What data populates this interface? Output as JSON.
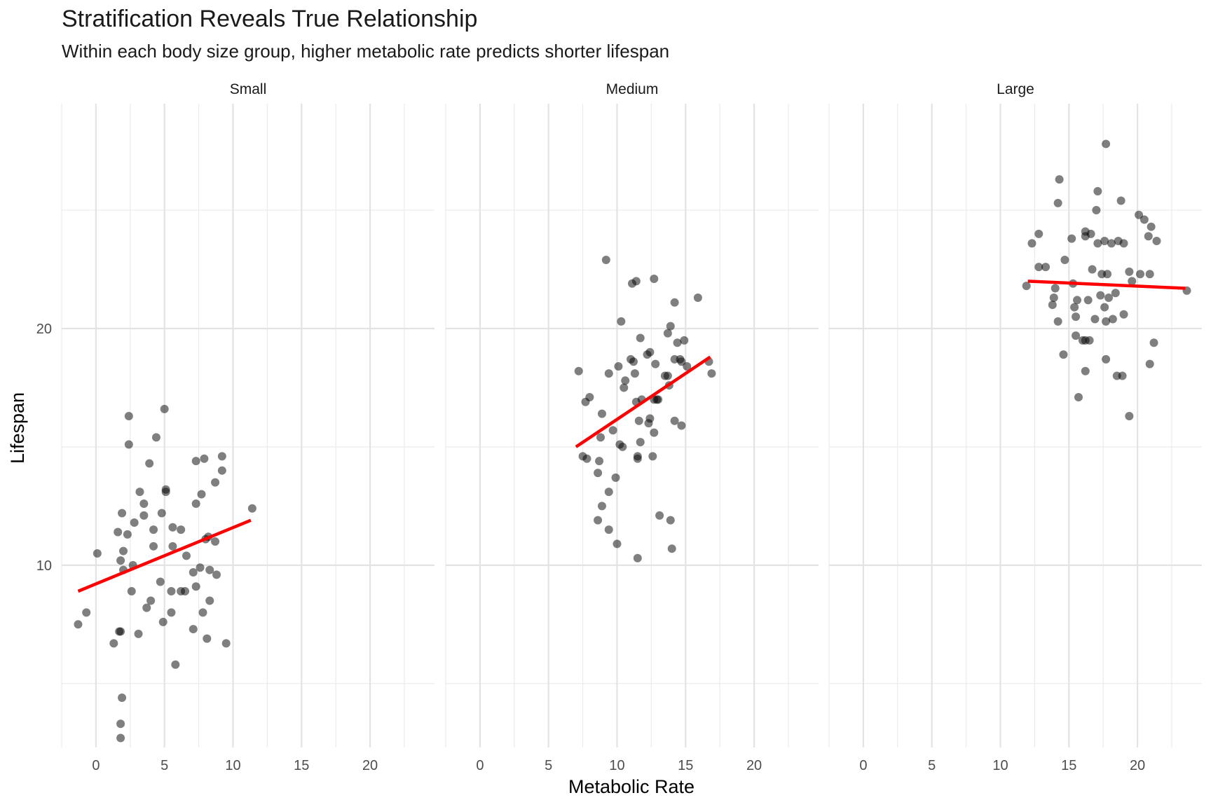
{
  "title": "Stratification Reveals True Relationship",
  "subtitle": "Within each body size group, higher metabolic rate predicts shorter lifespan",
  "chart_data": {
    "type": "scatter",
    "facet_by": "body size group",
    "xlabel": "Metabolic Rate",
    "ylabel": "Lifespan",
    "xlim": [
      -2.5,
      24.7
    ],
    "ylim": [
      2.3,
      29.5
    ],
    "x_ticks": [
      0,
      5,
      10,
      15,
      20
    ],
    "y_ticks": [
      10,
      20
    ],
    "grid": true,
    "point_color": "#000000",
    "point_alpha": 0.5,
    "fit_line_color": "#ff0000",
    "facets": [
      {
        "label": "Small",
        "fit_line": {
          "x": [
            -1.3,
            11.3
          ],
          "y": [
            8.9,
            11.9
          ]
        },
        "points": [
          [
            -1.3,
            7.5
          ],
          [
            -0.7,
            8.0
          ],
          [
            0.1,
            10.5
          ],
          [
            1.3,
            6.7
          ],
          [
            1.6,
            11.4
          ],
          [
            1.7,
            7.2
          ],
          [
            1.8,
            7.2
          ],
          [
            1.8,
            3.3
          ],
          [
            1.8,
            2.7
          ],
          [
            1.9,
            4.4
          ],
          [
            1.8,
            10.2
          ],
          [
            1.9,
            12.2
          ],
          [
            2.0,
            10.6
          ],
          [
            2.0,
            9.8
          ],
          [
            2.3,
            11.3
          ],
          [
            2.4,
            16.3
          ],
          [
            2.4,
            15.1
          ],
          [
            2.6,
            8.9
          ],
          [
            2.7,
            10.0
          ],
          [
            2.8,
            11.8
          ],
          [
            3.1,
            7.1
          ],
          [
            3.2,
            13.1
          ],
          [
            3.5,
            12.6
          ],
          [
            3.5,
            12.1
          ],
          [
            3.7,
            8.2
          ],
          [
            3.9,
            14.3
          ],
          [
            4.0,
            8.5
          ],
          [
            4.2,
            11.5
          ],
          [
            4.2,
            10.8
          ],
          [
            4.4,
            15.4
          ],
          [
            4.7,
            9.3
          ],
          [
            4.8,
            12.2
          ],
          [
            4.9,
            7.6
          ],
          [
            5.0,
            16.6
          ],
          [
            5.1,
            13.2
          ],
          [
            5.1,
            13.1
          ],
          [
            5.5,
            8.9
          ],
          [
            5.5,
            8.0
          ],
          [
            5.6,
            11.6
          ],
          [
            5.6,
            10.8
          ],
          [
            5.8,
            5.8
          ],
          [
            6.2,
            8.9
          ],
          [
            6.2,
            11.5
          ],
          [
            6.5,
            8.9
          ],
          [
            6.6,
            10.4
          ],
          [
            7.1,
            7.3
          ],
          [
            7.1,
            9.7
          ],
          [
            7.3,
            12.6
          ],
          [
            7.3,
            14.4
          ],
          [
            7.3,
            9.1
          ],
          [
            7.6,
            9.9
          ],
          [
            7.7,
            13.0
          ],
          [
            7.8,
            8.0
          ],
          [
            7.9,
            14.5
          ],
          [
            8.0,
            11.1
          ],
          [
            8.1,
            6.9
          ],
          [
            8.2,
            11.2
          ],
          [
            8.3,
            9.8
          ],
          [
            8.3,
            8.5
          ],
          [
            8.7,
            11.0
          ],
          [
            8.7,
            13.5
          ],
          [
            8.8,
            9.6
          ],
          [
            9.2,
            14.6
          ],
          [
            9.2,
            14.0
          ],
          [
            9.5,
            6.7
          ],
          [
            11.4,
            12.4
          ]
        ]
      },
      {
        "label": "Medium",
        "fit_line": {
          "x": [
            7.0,
            16.8
          ],
          "y": [
            15.0,
            18.8
          ]
        },
        "points": [
          [
            7.2,
            18.2
          ],
          [
            7.5,
            14.6
          ],
          [
            7.7,
            16.9
          ],
          [
            7.8,
            14.5
          ],
          [
            8.0,
            17.1
          ],
          [
            8.6,
            11.9
          ],
          [
            8.6,
            13.9
          ],
          [
            8.7,
            14.4
          ],
          [
            8.8,
            15.4
          ],
          [
            8.9,
            16.4
          ],
          [
            8.9,
            12.5
          ],
          [
            9.2,
            22.9
          ],
          [
            9.4,
            11.5
          ],
          [
            9.4,
            13.1
          ],
          [
            9.4,
            18.1
          ],
          [
            9.7,
            15.7
          ],
          [
            9.9,
            13.7
          ],
          [
            10.0,
            10.9
          ],
          [
            10.1,
            18.4
          ],
          [
            10.2,
            15.1
          ],
          [
            10.3,
            20.3
          ],
          [
            10.4,
            15.0
          ],
          [
            10.5,
            17.5
          ],
          [
            10.6,
            17.8
          ],
          [
            11.0,
            18.7
          ],
          [
            11.1,
            21.9
          ],
          [
            11.2,
            18.6
          ],
          [
            11.3,
            18.1
          ],
          [
            11.4,
            22.0
          ],
          [
            11.4,
            16.9
          ],
          [
            11.5,
            10.3
          ],
          [
            11.5,
            14.6
          ],
          [
            11.5,
            14.5
          ],
          [
            11.6,
            16.1
          ],
          [
            11.7,
            19.6
          ],
          [
            11.7,
            15.2
          ],
          [
            11.8,
            17.0
          ],
          [
            12.2,
            18.9
          ],
          [
            12.3,
            16.0
          ],
          [
            12.4,
            19.0
          ],
          [
            12.4,
            16.2
          ],
          [
            12.6,
            14.6
          ],
          [
            12.7,
            17.0
          ],
          [
            12.7,
            15.6
          ],
          [
            12.7,
            22.1
          ],
          [
            12.8,
            18.5
          ],
          [
            12.9,
            17.0
          ],
          [
            13.0,
            17.0
          ],
          [
            13.1,
            12.1
          ],
          [
            13.5,
            18.0
          ],
          [
            13.7,
            18.0
          ],
          [
            13.7,
            19.8
          ],
          [
            13.8,
            17.6
          ],
          [
            13.9,
            20.1
          ],
          [
            13.9,
            11.9
          ],
          [
            14.0,
            10.7
          ],
          [
            14.2,
            16.1
          ],
          [
            14.2,
            18.7
          ],
          [
            14.2,
            21.1
          ],
          [
            14.4,
            19.4
          ],
          [
            14.6,
            18.7
          ],
          [
            14.7,
            18.6
          ],
          [
            14.7,
            15.9
          ],
          [
            14.9,
            19.5
          ],
          [
            15.1,
            18.4
          ],
          [
            15.9,
            21.3
          ],
          [
            16.7,
            18.6
          ],
          [
            16.9,
            18.1
          ]
        ]
      },
      {
        "label": "Large",
        "fit_line": {
          "x": [
            12.0,
            23.5
          ],
          "y": [
            22.0,
            21.7
          ]
        },
        "points": [
          [
            11.9,
            21.8
          ],
          [
            12.3,
            23.6
          ],
          [
            12.8,
            24.0
          ],
          [
            12.8,
            22.6
          ],
          [
            13.3,
            22.6
          ],
          [
            13.8,
            21.0
          ],
          [
            13.9,
            21.3
          ],
          [
            14.0,
            21.7
          ],
          [
            14.2,
            20.3
          ],
          [
            14.2,
            25.3
          ],
          [
            14.3,
            26.3
          ],
          [
            14.6,
            18.9
          ],
          [
            14.7,
            22.9
          ],
          [
            15.2,
            23.8
          ],
          [
            15.3,
            21.9
          ],
          [
            15.4,
            20.9
          ],
          [
            15.5,
            19.7
          ],
          [
            15.5,
            20.5
          ],
          [
            15.6,
            21.2
          ],
          [
            15.7,
            17.1
          ],
          [
            16.0,
            19.5
          ],
          [
            16.2,
            24.1
          ],
          [
            16.2,
            23.9
          ],
          [
            16.2,
            19.5
          ],
          [
            16.2,
            18.2
          ],
          [
            16.4,
            21.2
          ],
          [
            16.5,
            19.5
          ],
          [
            16.6,
            24.0
          ],
          [
            16.7,
            22.5
          ],
          [
            16.9,
            20.4
          ],
          [
            17.0,
            25.0
          ],
          [
            17.1,
            23.6
          ],
          [
            17.1,
            25.8
          ],
          [
            17.3,
            21.4
          ],
          [
            17.4,
            22.3
          ],
          [
            17.6,
            23.7
          ],
          [
            17.6,
            20.9
          ],
          [
            17.7,
            27.8
          ],
          [
            17.7,
            18.7
          ],
          [
            17.7,
            20.3
          ],
          [
            17.8,
            22.3
          ],
          [
            17.9,
            21.3
          ],
          [
            18.1,
            23.6
          ],
          [
            18.2,
            20.4
          ],
          [
            18.4,
            21.5
          ],
          [
            18.5,
            18.0
          ],
          [
            18.6,
            23.7
          ],
          [
            18.8,
            25.4
          ],
          [
            18.9,
            18.0
          ],
          [
            19.0,
            20.6
          ],
          [
            19.0,
            23.6
          ],
          [
            19.4,
            16.3
          ],
          [
            19.4,
            22.4
          ],
          [
            19.6,
            22.0
          ],
          [
            20.1,
            24.8
          ],
          [
            20.2,
            22.3
          ],
          [
            20.5,
            24.6
          ],
          [
            20.8,
            23.9
          ],
          [
            20.9,
            18.5
          ],
          [
            20.9,
            22.3
          ],
          [
            21.0,
            24.3
          ],
          [
            21.2,
            19.4
          ],
          [
            21.4,
            23.7
          ],
          [
            23.6,
            21.6
          ]
        ]
      }
    ]
  }
}
